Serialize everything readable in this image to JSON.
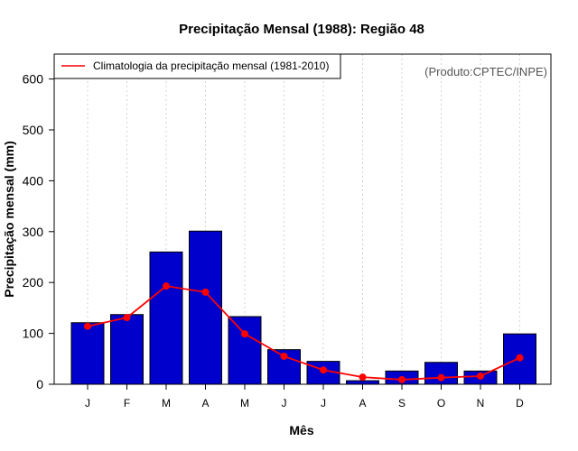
{
  "chart_data": {
    "type": "bar",
    "title": "Precipitação Mensal (1988): Região 48",
    "xlabel": "Mês",
    "ylabel": "Precipitação mensal (mm)",
    "categories": [
      "J",
      "F",
      "M",
      "A",
      "M",
      "J",
      "J",
      "A",
      "S",
      "O",
      "N",
      "D"
    ],
    "ylim": [
      0,
      650
    ],
    "yticks": [
      0,
      100,
      200,
      300,
      400,
      500,
      600
    ],
    "grid": "vertical dotted",
    "legend_position": "top-left",
    "credit": "(Produto:CPTEC/INPE)",
    "series": [
      {
        "name": "Precipitação mensal (1988)",
        "kind": "bar",
        "color": "#0000cc",
        "values": [
          121,
          137,
          260,
          301,
          133,
          68,
          45,
          7,
          26,
          43,
          26,
          99
        ]
      },
      {
        "name": "Climatologia da precipitação mensal (1981-2010)",
        "kind": "line",
        "color": "#ff0000",
        "values": [
          114,
          131,
          193,
          181,
          99,
          55,
          28,
          14,
          9,
          13,
          16,
          52
        ]
      }
    ]
  }
}
